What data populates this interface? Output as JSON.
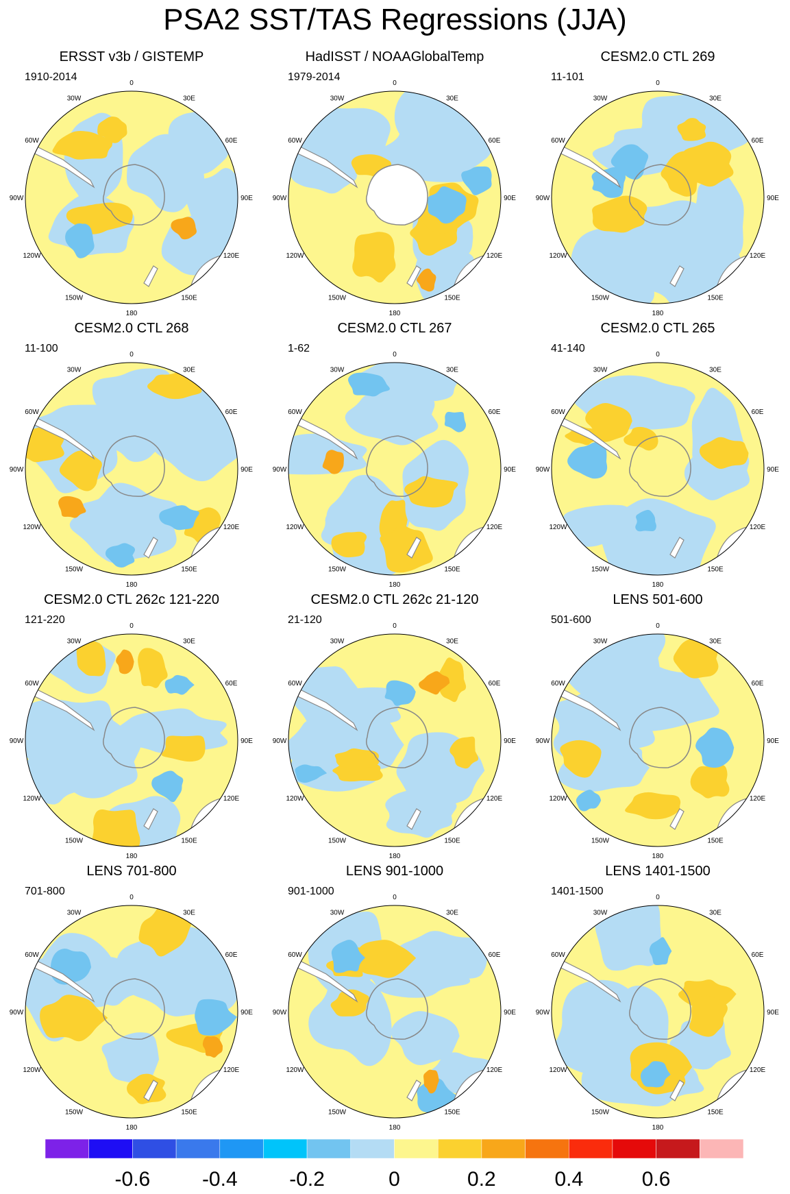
{
  "title": "PSA2 SST/TAS Regressions (JJA)",
  "lon_labels": [
    "0",
    "30E",
    "60E",
    "90E",
    "120E",
    "150E",
    "180",
    "150W",
    "120W",
    "90W",
    "60W",
    "30W"
  ],
  "panels": [
    {
      "title": "ERSST v3b / GISTEMP",
      "period": "1910-2014"
    },
    {
      "title": "HadISST / NOAAGlobalTemp",
      "period": "1979-2014"
    },
    {
      "title": "CESM2.0 CTL 269",
      "period": "11-101"
    },
    {
      "title": "CESM2.0 CTL 268",
      "period": "11-100"
    },
    {
      "title": "CESM2.0 CTL 267",
      "period": "1-62"
    },
    {
      "title": "CESM2.0 CTL 265",
      "period": "41-140"
    },
    {
      "title": "CESM2.0 CTL 262c 121-220",
      "period": "121-220"
    },
    {
      "title": "CESM2.0 CTL 262c 21-120",
      "period": "21-120"
    },
    {
      "title": "LENS 501-600",
      "period": "501-600"
    },
    {
      "title": "LENS 701-800",
      "period": "701-800"
    },
    {
      "title": "LENS 901-1000",
      "period": "901-1000"
    },
    {
      "title": "LENS 1401-1500",
      "period": "1401-1500"
    }
  ],
  "colors": {
    "positive_light": "#fdf68e",
    "positive_mid": "#fbd12f",
    "positive_strong": "#f8a71a",
    "negative_light": "#b4dcf4",
    "negative_mid": "#72c4f0",
    "negative_strong": "#1f97f4",
    "land": "#ffffff",
    "coast": "#888888"
  },
  "chart_data": {
    "type": "heatmap",
    "projection": "south-polar-stereographic",
    "colorbar": {
      "colors": [
        "#7d22e8",
        "#1e0ef4",
        "#2f4fe4",
        "#3a79ec",
        "#1f97f4",
        "#00c4fa",
        "#72c4f0",
        "#b4dcf4",
        "#fdf68e",
        "#fbd12f",
        "#f8a71a",
        "#f6740f",
        "#fa2c0c",
        "#e50a0a",
        "#c6191c",
        "#fcb6b6"
      ],
      "tick_labels": [
        "-0.6",
        "-0.4",
        "-0.2",
        "0",
        "0.2",
        "0.4",
        "0.6"
      ],
      "tick_values": [
        -0.6,
        -0.4,
        -0.2,
        0,
        0.2,
        0.4,
        0.6
      ],
      "range": [
        -0.8,
        0.8
      ]
    }
  }
}
